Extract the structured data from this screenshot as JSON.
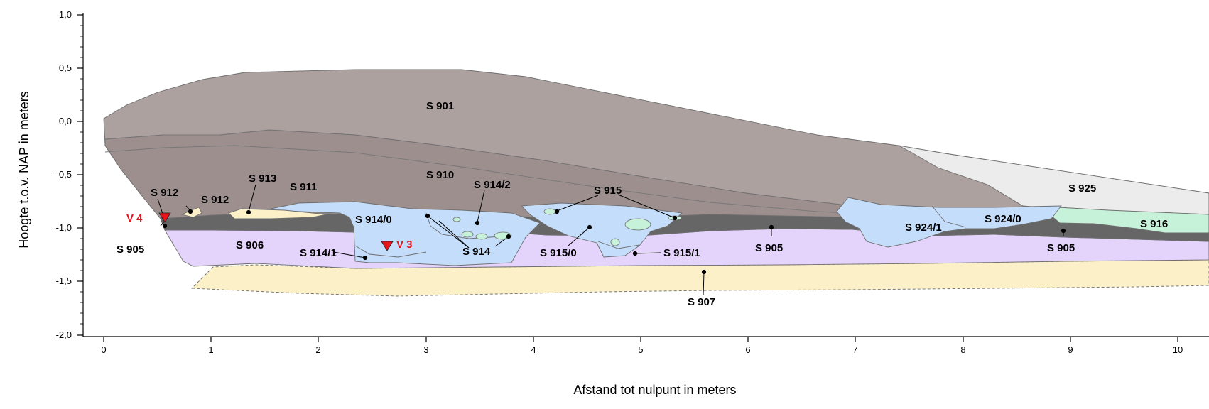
{
  "axes": {
    "y_title": "Hoogte t.o.v. NAP in meters",
    "x_title": "Afstand tot nulpunt in meters",
    "y_ticks": [
      "1,0",
      "0,5",
      "0,0",
      "-0,5",
      "-1,0",
      "-1,5",
      "-2,0"
    ],
    "x_ticks": [
      "0",
      "1",
      "2",
      "3",
      "4",
      "5",
      "6",
      "7",
      "8",
      "9",
      "10"
    ],
    "y_range": [
      -2.0,
      1.0
    ],
    "x_range": [
      0,
      10
    ]
  },
  "layers": {
    "s901": "S 901",
    "s910": "S 910",
    "s911": "S 911",
    "s912_a": "S 912",
    "s912_b": "S 912",
    "s913": "S 913",
    "s914": "S 914",
    "s914_0": "S 914/0",
    "s914_1": "S 914/1",
    "s914_2": "S 914/2",
    "s915": "S 915",
    "s915_0": "S 915/0",
    "s915_1": "S 915/1",
    "s905_a": "S 905",
    "s905_b": "S 905",
    "s905_c": "S 905",
    "s906": "S 906",
    "s907": "S 907",
    "s916": "S 916",
    "s924_0": "S 924/0",
    "s924_1": "S 924/1",
    "s925": "S 925"
  },
  "markers": {
    "v3": "V 3",
    "v4": "V 4"
  },
  "colors": {
    "s901": "#ada1a0",
    "s910": "#9c8f8e",
    "s905": "#666666",
    "s906": "#e4d3fb",
    "s907": "#fbf0c8",
    "blue_fill": "#c4ddfa",
    "green_fill": "#c6f2da",
    "s925": "#ececec",
    "marker": "#e8141c"
  }
}
